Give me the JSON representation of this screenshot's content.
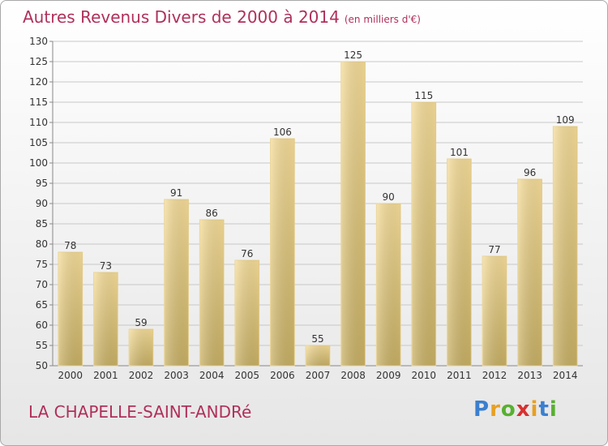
{
  "header": {
    "title": "Autres Revenus Divers de 2000 à 2014",
    "unit": "(en milliers d'€)"
  },
  "footer": {
    "commune": "LA CHAPELLE-SAINT-ANDRé",
    "logo": [
      "P",
      "r",
      "o",
      "x",
      "i",
      "t",
      "i"
    ]
  },
  "colors": {
    "title": "#b0305a",
    "bar_light": "#f5dc98",
    "bar_dark": "#c8b064",
    "grid": "#c8c8c8"
  },
  "chart_data": {
    "type": "bar",
    "title": "Autres Revenus Divers de 2000 à 2014",
    "categories": [
      "2000",
      "2001",
      "2002",
      "2003",
      "2004",
      "2005",
      "2006",
      "2007",
      "2008",
      "2009",
      "2010",
      "2011",
      "2012",
      "2013",
      "2014"
    ],
    "values": [
      78,
      73,
      59,
      91,
      86,
      76,
      106,
      55,
      125,
      90,
      115,
      101,
      77,
      96,
      109
    ],
    "ylim": [
      50,
      130
    ],
    "yticks": [
      50,
      55,
      60,
      65,
      70,
      75,
      80,
      85,
      90,
      95,
      100,
      105,
      110,
      115,
      120,
      125,
      130
    ],
    "grid": true,
    "xlabel": "",
    "ylabel": ""
  }
}
